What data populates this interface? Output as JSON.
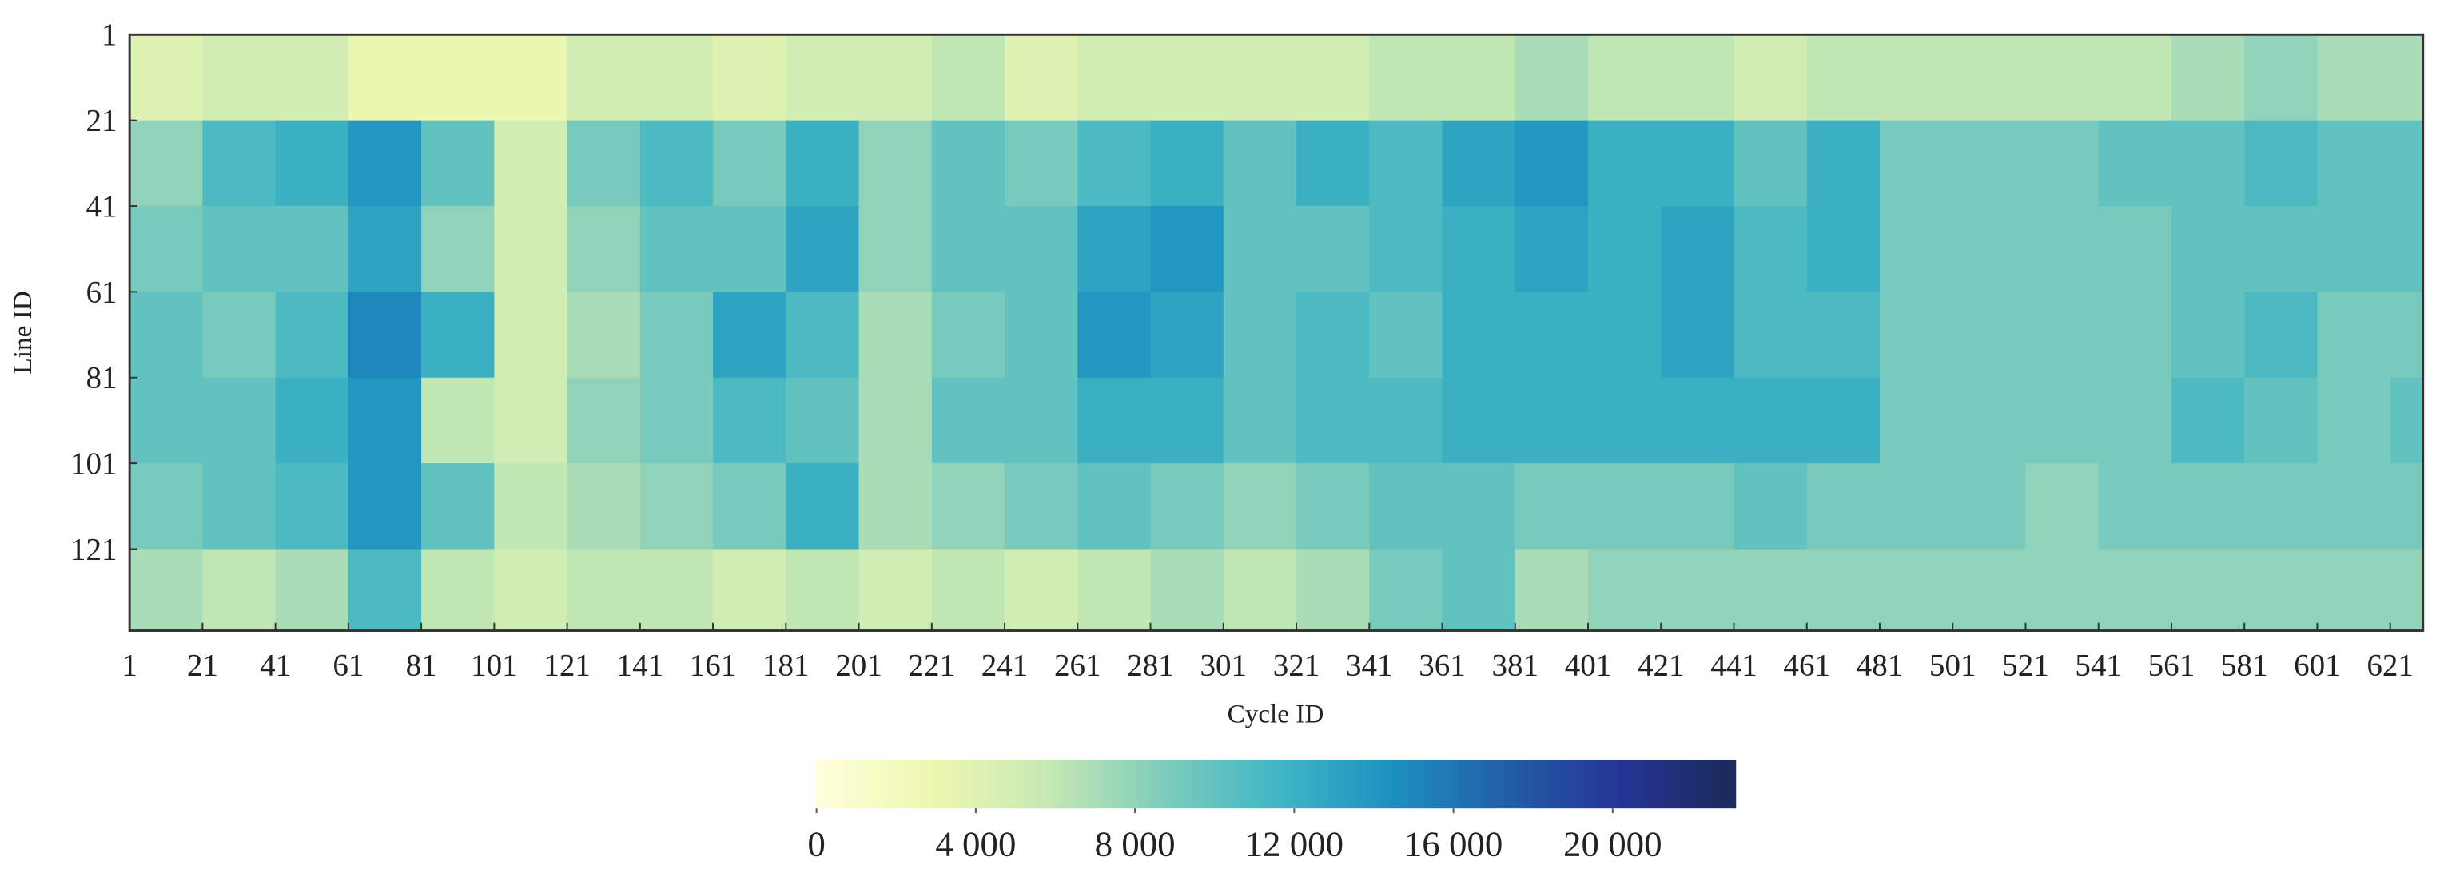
{
  "chart_data": {
    "type": "heatmap",
    "x_label": "Cycle ID",
    "y_label": "Line ID",
    "x_edges": [
      1,
      21,
      41,
      61,
      81,
      101,
      121,
      141,
      161,
      181,
      201,
      221,
      241,
      261,
      281,
      301,
      321,
      341,
      361,
      381,
      401,
      421,
      441,
      461,
      481,
      501,
      521,
      541,
      561,
      581,
      601,
      621,
      630
    ],
    "y_edges": [
      1,
      21,
      41,
      61,
      81,
      101,
      121,
      140
    ],
    "z": [
      [
        4000,
        5000,
        5000,
        3000,
        3000,
        3000,
        5000,
        5000,
        4000,
        5000,
        5000,
        6000,
        4000,
        5000,
        5000,
        5000,
        5000,
        6000,
        6000,
        7000,
        6000,
        6000,
        5000,
        6000,
        6000,
        6000,
        6000,
        6000,
        7000,
        8000,
        7000,
        7000
      ],
      [
        8000,
        11000,
        12000,
        14000,
        10000,
        5000,
        9000,
        11000,
        9000,
        12000,
        8000,
        10000,
        9000,
        11000,
        12000,
        10000,
        12000,
        11000,
        13000,
        14000,
        12000,
        12000,
        10000,
        12000,
        9000,
        9000,
        9000,
        10000,
        10000,
        11000,
        10000,
        10000
      ],
      [
        9000,
        10000,
        10000,
        13000,
        8000,
        5000,
        8000,
        10000,
        10000,
        13000,
        8000,
        10000,
        10000,
        13000,
        14000,
        10000,
        10000,
        11000,
        12000,
        13000,
        12000,
        13000,
        11000,
        12000,
        9000,
        9000,
        9000,
        9000,
        10000,
        10000,
        10000,
        10000
      ],
      [
        10000,
        9000,
        11000,
        15000,
        12000,
        5000,
        7000,
        9000,
        13000,
        11000,
        7000,
        9000,
        10000,
        14000,
        13000,
        10000,
        11000,
        10000,
        12000,
        12000,
        12000,
        13000,
        11000,
        11000,
        9000,
        9000,
        9000,
        9000,
        10000,
        11000,
        9000,
        9000
      ],
      [
        10000,
        10000,
        12000,
        14000,
        6000,
        5000,
        8000,
        9000,
        11000,
        10000,
        7000,
        10000,
        10000,
        12000,
        12000,
        10000,
        11000,
        11000,
        12000,
        12000,
        12000,
        12000,
        12000,
        12000,
        9000,
        9000,
        9000,
        9000,
        11000,
        10000,
        9000,
        10000
      ],
      [
        9000,
        10000,
        11000,
        14000,
        10000,
        6000,
        7000,
        8000,
        9000,
        12000,
        7000,
        8000,
        9000,
        10000,
        9000,
        8000,
        9000,
        10000,
        10000,
        9000,
        9000,
        9000,
        10000,
        9000,
        9000,
        9000,
        8000,
        9000,
        9000,
        9000,
        9000,
        9000
      ],
      [
        7000,
        6000,
        7000,
        11000,
        6000,
        5000,
        6000,
        6000,
        5000,
        6000,
        5000,
        6000,
        5000,
        6000,
        7000,
        6000,
        7000,
        9000,
        10000,
        7000,
        8000,
        8000,
        8000,
        8000,
        8000,
        8000,
        8000,
        8000,
        8000,
        8000,
        8000,
        8000
      ]
    ],
    "xlim": [
      1,
      630
    ],
    "ylim": [
      1,
      140
    ],
    "y_inverted": true,
    "xticks": [
      1,
      21,
      41,
      61,
      81,
      101,
      121,
      141,
      161,
      181,
      201,
      221,
      241,
      261,
      281,
      301,
      321,
      341,
      361,
      381,
      401,
      421,
      441,
      461,
      481,
      501,
      521,
      541,
      561,
      581,
      601,
      621
    ],
    "yticks": [
      1,
      21,
      41,
      61,
      81,
      101,
      121
    ],
    "colorscale": [
      "#ffffd9",
      "#edf8b1",
      "#c7e9b4",
      "#7fcdbb",
      "#41b6c4",
      "#1d91c0",
      "#225ea8",
      "#253494",
      "#1a2a5a"
    ],
    "clim": [
      0,
      23100
    ],
    "cticks": [
      0,
      {
        "value": 4000,
        "label": "4 000"
      },
      {
        "value": 8000,
        "label": "8 000"
      },
      {
        "value": 12000,
        "label": "12 000"
      },
      {
        "value": 16000,
        "label": "16 000"
      },
      {
        "value": 20000,
        "label": "20 000"
      }
    ]
  }
}
